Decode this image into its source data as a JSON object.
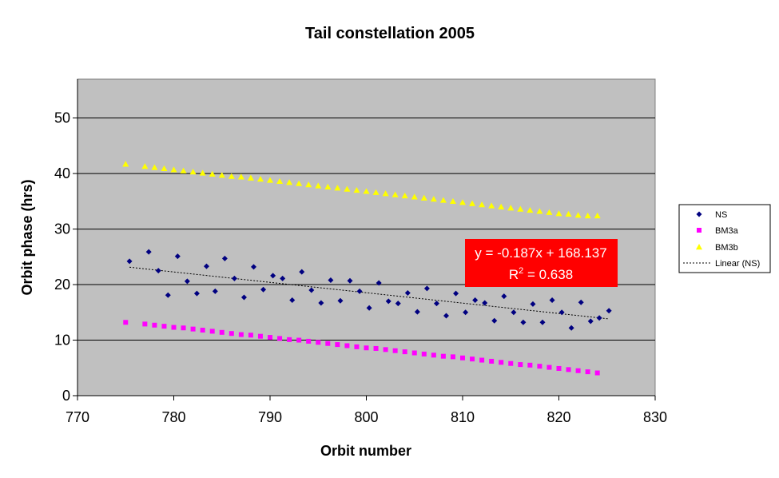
{
  "chart_data": {
    "type": "scatter",
    "title": "Tail constellation 2005",
    "xlabel": "Orbit number",
    "ylabel": "Orbit phase (hrs)",
    "xlim": [
      770,
      830
    ],
    "ylim": [
      0,
      57
    ],
    "xticks": [
      770,
      780,
      790,
      800,
      810,
      820,
      830
    ],
    "yticks": [
      0,
      10,
      20,
      30,
      40,
      50
    ],
    "grid": "horizontal",
    "legend_position": "right",
    "series": [
      {
        "name": "NS",
        "marker": "diamond",
        "color": "#000080",
        "x": [
          775.4,
          777.4,
          778.4,
          779.4,
          780.4,
          781.4,
          782.4,
          783.4,
          784.3,
          785.3,
          786.3,
          787.3,
          788.3,
          789.3,
          790.3,
          791.3,
          792.3,
          793.3,
          794.3,
          795.3,
          796.3,
          797.3,
          798.3,
          799.3,
          800.3,
          801.3,
          802.3,
          803.3,
          804.3,
          805.3,
          806.3,
          807.3,
          808.3,
          809.3,
          810.3,
          811.3,
          812.3,
          813.3,
          814.3,
          815.3,
          816.3,
          817.3,
          818.3,
          819.3,
          820.3,
          821.3,
          822.3,
          823.3,
          824.2,
          825.2
        ],
        "y": [
          24.2,
          25.9,
          22.5,
          18.1,
          25.1,
          20.6,
          18.4,
          23.3,
          18.8,
          24.7,
          21.1,
          17.7,
          23.2,
          19.1,
          21.6,
          21.1,
          17.2,
          22.3,
          19.0,
          16.7,
          20.8,
          17.1,
          20.7,
          18.8,
          15.8,
          20.3,
          17.0,
          16.6,
          18.5,
          15.1,
          19.3,
          16.6,
          14.4,
          18.4,
          15.0,
          17.2,
          16.7,
          13.5,
          17.9,
          15.0,
          13.2,
          16.5,
          13.2,
          17.2,
          15.0,
          12.2,
          16.8,
          13.4,
          14.0,
          15.3
        ]
      },
      {
        "name": "BM3a",
        "marker": "square",
        "color": "#ff00ff",
        "x": [
          775,
          777,
          778,
          779,
          780,
          781,
          782,
          783,
          784,
          785,
          786,
          787,
          788,
          789,
          790,
          791,
          792,
          793,
          794,
          795,
          796,
          797,
          798,
          799,
          800,
          801,
          802,
          803,
          804,
          805,
          806,
          807,
          808,
          809,
          810,
          811,
          812,
          813,
          814,
          815,
          816,
          817,
          818,
          819,
          820,
          821,
          822,
          823,
          824
        ],
        "y": [
          13.2,
          12.9,
          12.7,
          12.5,
          12.3,
          12.2,
          12.0,
          11.8,
          11.6,
          11.4,
          11.2,
          11.0,
          10.9,
          10.7,
          10.5,
          10.3,
          10.1,
          10.0,
          9.8,
          9.6,
          9.4,
          9.2,
          9.0,
          8.8,
          8.6,
          8.5,
          8.3,
          8.1,
          7.9,
          7.7,
          7.5,
          7.3,
          7.1,
          7.0,
          6.8,
          6.6,
          6.4,
          6.2,
          6.0,
          5.8,
          5.6,
          5.5,
          5.3,
          5.1,
          4.9,
          4.7,
          4.5,
          4.3,
          4.1
        ]
      },
      {
        "name": "BM3b",
        "marker": "triangle",
        "color": "#ffff00",
        "x": [
          775,
          777,
          778,
          779,
          780,
          781,
          782,
          783,
          784,
          785,
          786,
          787,
          788,
          789,
          790,
          791,
          792,
          793,
          794,
          795,
          796,
          797,
          798,
          799,
          800,
          801,
          802,
          803,
          804,
          805,
          806,
          807,
          808,
          809,
          810,
          811,
          812,
          813,
          814,
          815,
          816,
          817,
          818,
          819,
          820,
          821,
          822,
          823,
          824
        ],
        "y": [
          41.7,
          41.3,
          41.1,
          40.9,
          40.7,
          40.5,
          40.3,
          40.1,
          39.9,
          39.7,
          39.5,
          39.4,
          39.2,
          39.0,
          38.8,
          38.6,
          38.4,
          38.2,
          38.0,
          37.8,
          37.6,
          37.4,
          37.2,
          37.0,
          36.8,
          36.6,
          36.4,
          36.2,
          36.0,
          35.8,
          35.6,
          35.4,
          35.2,
          35.0,
          34.8,
          34.6,
          34.4,
          34.2,
          34.0,
          33.8,
          33.6,
          33.4,
          33.2,
          33.0,
          32.8,
          32.7,
          32.5,
          32.4,
          32.4
        ]
      }
    ],
    "trendline": {
      "name": "Linear (NS)",
      "series": "NS",
      "slope": -0.187,
      "intercept": 168.137,
      "x_range": [
        775.4,
        825.2
      ],
      "equation": "y = -0.187x + 168.137",
      "r2_label": "R",
      "r2_sup": "2",
      "r2_value": " = 0.638",
      "box_color": "#ff0000"
    }
  }
}
